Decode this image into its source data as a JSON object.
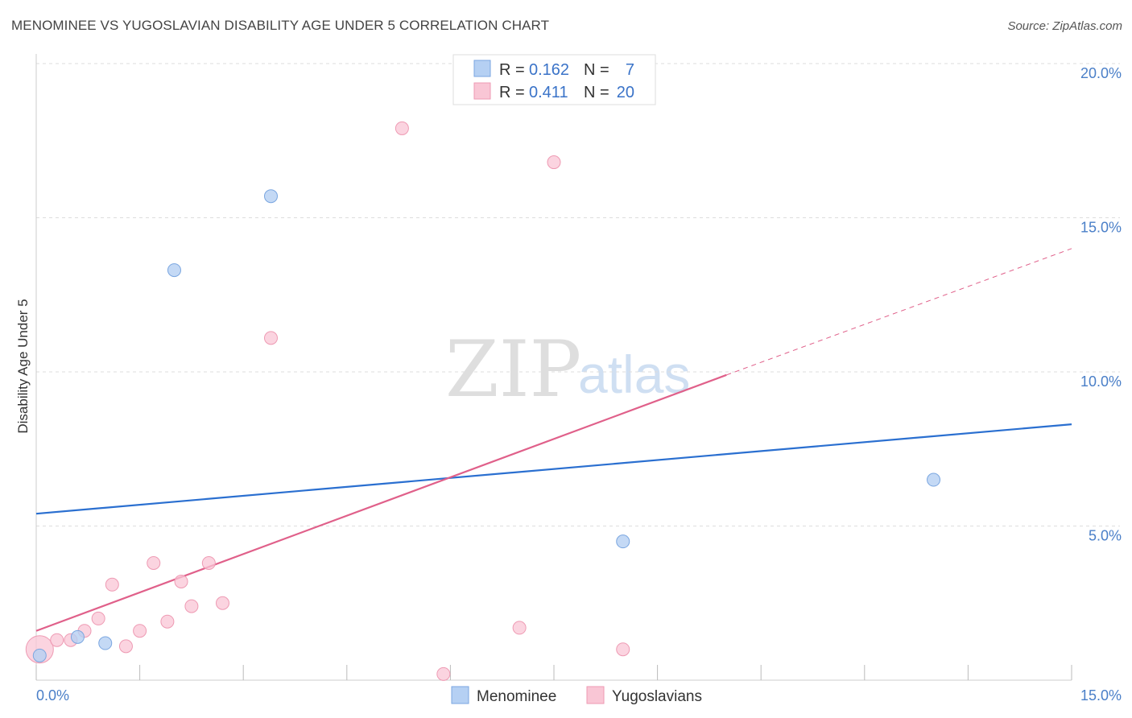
{
  "header": {
    "title": "MENOMINEE VS YUGOSLAVIAN DISABILITY AGE UNDER 5 CORRELATION CHART",
    "source": "Source: ZipAtlas.com"
  },
  "watermark": {
    "zip": "ZIP",
    "atlas": "atlas"
  },
  "legend": {
    "rows": [
      {
        "r_label": "R =",
        "r_value": "0.162",
        "n_label": "N =",
        "n_value": "7"
      },
      {
        "r_label": "R =",
        "r_value": "0.411",
        "n_label": "N =",
        "n_value": "20"
      }
    ]
  },
  "bottom_legend": {
    "series0": "Menominee",
    "series1": "Yugoslavians"
  },
  "colors": {
    "menominee_fill": "#b5d0f3",
    "menominee_stroke": "#7aa6e0",
    "menominee_line": "#2a6fd0",
    "yugoslavian_fill": "#f9c6d5",
    "yugoslavian_stroke": "#ee9ab3",
    "yugoslavian_line": "#e0608a",
    "grid": "#dddddd",
    "tick_label": "#4a7fc8"
  },
  "chart_data": {
    "type": "scatter",
    "title": "MENOMINEE VS YUGOSLAVIAN DISABILITY AGE UNDER 5 CORRELATION CHART",
    "xlabel": "",
    "ylabel": "Disability Age Under 5",
    "xlim": [
      0,
      15
    ],
    "ylim": [
      0,
      20
    ],
    "x_tick_labels": [
      "0.0%",
      "15.0%"
    ],
    "y_ticks": [
      5,
      10,
      15,
      20
    ],
    "y_tick_labels": [
      "5.0%",
      "10.0%",
      "15.0%",
      "20.0%"
    ],
    "grid": true,
    "legend_position": "top-center",
    "series": [
      {
        "name": "Menominee",
        "r": 0.162,
        "n": 7,
        "points": [
          {
            "x": 0.05,
            "y": 0.8
          },
          {
            "x": 0.6,
            "y": 1.4
          },
          {
            "x": 1.0,
            "y": 1.2
          },
          {
            "x": 2.0,
            "y": 13.3
          },
          {
            "x": 3.4,
            "y": 15.7
          },
          {
            "x": 8.5,
            "y": 4.5
          },
          {
            "x": 13.0,
            "y": 6.5
          }
        ],
        "trend": {
          "x": [
            0,
            15
          ],
          "y": [
            5.4,
            8.3
          ],
          "dashed_extension": false
        }
      },
      {
        "name": "Yugoslavians",
        "r": 0.411,
        "n": 20,
        "points": [
          {
            "x": 0.05,
            "y": 1.0
          },
          {
            "x": 0.3,
            "y": 1.3
          },
          {
            "x": 0.5,
            "y": 1.3
          },
          {
            "x": 0.7,
            "y": 1.6
          },
          {
            "x": 0.9,
            "y": 2.0
          },
          {
            "x": 1.1,
            "y": 3.1
          },
          {
            "x": 1.3,
            "y": 1.1
          },
          {
            "x": 1.5,
            "y": 1.6
          },
          {
            "x": 1.7,
            "y": 3.8
          },
          {
            "x": 1.9,
            "y": 1.9
          },
          {
            "x": 2.1,
            "y": 3.2
          },
          {
            "x": 2.25,
            "y": 2.4
          },
          {
            "x": 2.5,
            "y": 3.8
          },
          {
            "x": 2.7,
            "y": 2.5
          },
          {
            "x": 3.4,
            "y": 11.1
          },
          {
            "x": 5.3,
            "y": 17.9
          },
          {
            "x": 5.9,
            "y": 0.2
          },
          {
            "x": 7.0,
            "y": 1.7
          },
          {
            "x": 7.5,
            "y": 16.8
          },
          {
            "x": 8.5,
            "y": 1.0
          }
        ],
        "trend": {
          "x": [
            0,
            10
          ],
          "y": [
            1.6,
            9.9
          ],
          "dashed_extension": {
            "x": [
              10,
              15
            ],
            "y": [
              9.9,
              14.0
            ]
          }
        }
      }
    ]
  }
}
